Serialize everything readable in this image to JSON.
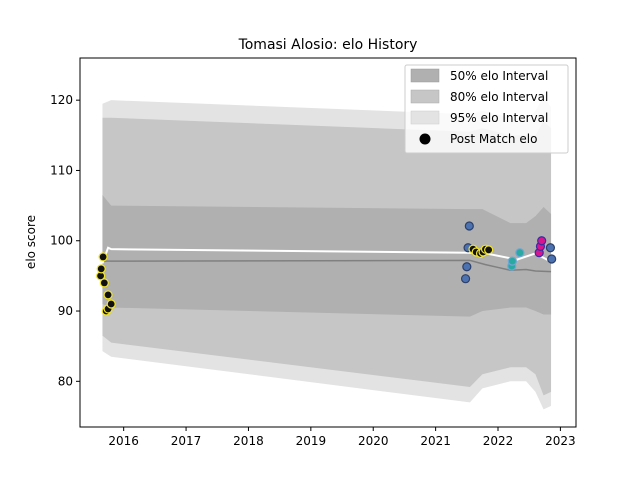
{
  "chart_data": {
    "type": "scatter",
    "title": "Tomasi Alosio: elo History",
    "xlabel": "",
    "ylabel": "elo score",
    "xlim": [
      2015.3,
      2023.25
    ],
    "ylim": [
      73.5,
      126
    ],
    "x_ticks": [
      2016,
      2017,
      2018,
      2019,
      2020,
      2021,
      2022,
      2023
    ],
    "x_tick_labels": [
      "2016",
      "2017",
      "2018",
      "2019",
      "2020",
      "2021",
      "2022",
      "2023"
    ],
    "y_ticks": [
      80,
      90,
      100,
      110,
      120
    ],
    "y_tick_labels": [
      "80",
      "90",
      "100",
      "110",
      "120"
    ],
    "grid": false,
    "legend_position": "top-right",
    "legend": [
      {
        "label": "50% elo Interval",
        "kind": "band",
        "color": "#b0b0b0"
      },
      {
        "label": "80% elo Interval",
        "kind": "band",
        "color": "#c6c6c6"
      },
      {
        "label": "95% elo Interval",
        "kind": "band",
        "color": "#e3e3e3"
      },
      {
        "label": "Post Match elo",
        "kind": "marker",
        "color": "#000000"
      }
    ],
    "colors": {
      "band50": "#b0b0b0",
      "band80": "#c6c6c6",
      "band95": "#e3e3e3",
      "median_line": "#808080",
      "mean_line": "#ffffff"
    },
    "bands": {
      "x": [
        2015.66,
        2015.8,
        2021.55,
        2021.75,
        2022.2,
        2022.45,
        2022.6,
        2022.73,
        2022.85
      ],
      "p95_low": [
        84.3,
        83.5,
        77.0,
        79.0,
        80.0,
        80.0,
        78.5,
        76.0,
        76.5
      ],
      "p95_high": [
        119.5,
        120.0,
        118.0,
        118.5,
        117.5,
        117.0,
        118.5,
        120.5,
        119.0
      ],
      "p80_low": [
        86.5,
        85.5,
        79.2,
        81.0,
        82.0,
        82.0,
        81.0,
        78.0,
        78.5
      ],
      "p80_high": [
        117.5,
        117.5,
        115.5,
        116.0,
        115.0,
        115.0,
        115.0,
        117.0,
        116.0
      ],
      "p50_low": [
        91.0,
        90.5,
        89.2,
        90.0,
        90.5,
        90.5,
        90.0,
        89.5,
        89.5
      ],
      "p50_high": [
        106.5,
        105.0,
        104.5,
        104.5,
        102.5,
        102.5,
        103.5,
        104.8,
        103.8
      ]
    },
    "median_line": {
      "x": [
        2015.66,
        2015.8,
        2021.55,
        2021.8,
        2022.0,
        2022.2,
        2022.45,
        2022.6,
        2022.85
      ],
      "y": [
        97.1,
        97.1,
        97.2,
        96.6,
        96.2,
        95.8,
        95.9,
        95.7,
        95.6
      ]
    },
    "mean_line": {
      "x": [
        2015.66,
        2015.75,
        2015.8,
        2021.55,
        2021.75,
        2022.2,
        2022.3,
        2022.6,
        2022.85
      ],
      "y": [
        96.8,
        99.0,
        98.8,
        98.3,
        98.3,
        97.5,
        97.3,
        98.2,
        97.0
      ]
    },
    "points": [
      {
        "x": 2015.63,
        "y": 95.0,
        "fill": "#111111",
        "edge": "#f2e52a"
      },
      {
        "x": 2015.64,
        "y": 96.0,
        "fill": "#111111",
        "edge": "#f2e52a"
      },
      {
        "x": 2015.67,
        "y": 97.7,
        "fill": "#111111",
        "edge": "#f2e52a"
      },
      {
        "x": 2015.69,
        "y": 94.0,
        "fill": "#111111",
        "edge": "#f2e52a"
      },
      {
        "x": 2015.72,
        "y": 90.0,
        "fill": "#111111",
        "edge": "#f2e52a"
      },
      {
        "x": 2015.75,
        "y": 90.3,
        "fill": "#111111",
        "edge": "#f2e52a"
      },
      {
        "x": 2015.75,
        "y": 92.3,
        "fill": "#111111",
        "edge": "#f2e52a"
      },
      {
        "x": 2015.8,
        "y": 91.0,
        "fill": "#111111",
        "edge": "#f2e52a"
      },
      {
        "x": 2021.48,
        "y": 94.6,
        "fill": "#4c72b0",
        "edge": "#2b3f6b"
      },
      {
        "x": 2021.5,
        "y": 96.3,
        "fill": "#4c72b0",
        "edge": "#2b3f6b"
      },
      {
        "x": 2021.52,
        "y": 99.0,
        "fill": "#4c72b0",
        "edge": "#2b3f6b"
      },
      {
        "x": 2021.54,
        "y": 102.1,
        "fill": "#4c72b0",
        "edge": "#2b3f6b"
      },
      {
        "x": 2021.6,
        "y": 98.8,
        "fill": "#111111",
        "edge": "#f2e52a"
      },
      {
        "x": 2021.65,
        "y": 98.4,
        "fill": "#111111",
        "edge": "#f2e52a"
      },
      {
        "x": 2021.72,
        "y": 98.2,
        "fill": "#111111",
        "edge": "#f2e52a"
      },
      {
        "x": 2021.76,
        "y": 98.4,
        "fill": "#111111",
        "edge": "#f2e52a"
      },
      {
        "x": 2021.8,
        "y": 98.8,
        "fill": "#111111",
        "edge": "#f2e52a"
      },
      {
        "x": 2021.85,
        "y": 98.7,
        "fill": "#111111",
        "edge": "#f2e52a"
      },
      {
        "x": 2022.22,
        "y": 96.4,
        "fill": "#2aa9a2",
        "edge": "#6ea7d4"
      },
      {
        "x": 2022.23,
        "y": 97.1,
        "fill": "#2aa9a2",
        "edge": "#6ea7d4"
      },
      {
        "x": 2022.35,
        "y": 98.3,
        "fill": "#2aa9a2",
        "edge": "#6ea7d4"
      },
      {
        "x": 2022.66,
        "y": 98.3,
        "fill": "#d9158d",
        "edge": "#3b2aa3"
      },
      {
        "x": 2022.68,
        "y": 99.2,
        "fill": "#d9158d",
        "edge": "#3b2aa3"
      },
      {
        "x": 2022.7,
        "y": 100.0,
        "fill": "#d9158d",
        "edge": "#3b2aa3"
      },
      {
        "x": 2022.84,
        "y": 99.0,
        "fill": "#4c72b0",
        "edge": "#2b3f6b"
      },
      {
        "x": 2022.86,
        "y": 97.4,
        "fill": "#4c72b0",
        "edge": "#2b3f6b"
      }
    ]
  }
}
